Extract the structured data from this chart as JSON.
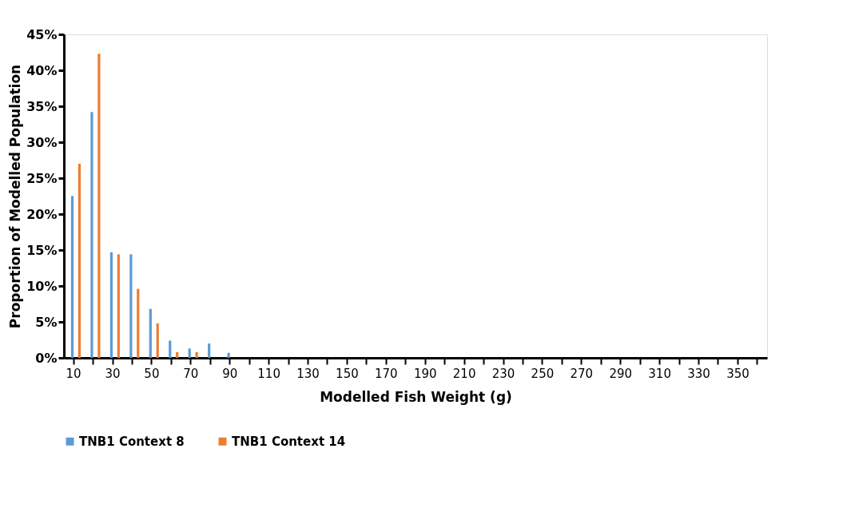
{
  "chart_data": {
    "type": "bar",
    "xlabel": "Modelled Fish Weight (g)",
    "ylabel": "Proportion of Modelled Population",
    "categories": [
      "10",
      null,
      "30",
      null,
      "50",
      null,
      "70",
      null,
      "90",
      null,
      "110",
      null,
      "130",
      null,
      "150",
      null,
      "170",
      null,
      "190",
      null,
      "210",
      null,
      "230",
      null,
      "250",
      null,
      "270",
      null,
      "290",
      null,
      "310",
      null,
      "330",
      null,
      "350",
      null
    ],
    "series": [
      {
        "name": "TNB1 Context 8",
        "color": "#5b9bd5",
        "values": [
          22.5,
          34.2,
          14.7,
          14.4,
          6.8,
          2.4,
          1.3,
          2.0,
          0.7,
          0,
          0,
          0,
          0,
          0,
          0,
          0,
          0,
          0,
          0,
          0,
          0,
          0,
          0,
          0,
          0,
          0,
          0,
          0,
          0,
          0,
          0,
          0,
          0,
          0,
          0,
          0
        ]
      },
      {
        "name": "TNB1 Context 14",
        "color": "#ed7d31",
        "values": [
          27.0,
          42.3,
          14.4,
          9.6,
          4.8,
          0.8,
          0.8,
          0,
          0,
          0,
          0,
          0,
          0,
          0,
          0,
          0,
          0,
          0,
          0,
          0,
          0,
          0,
          0,
          0,
          0,
          0,
          0,
          0,
          0,
          0,
          0,
          0,
          0,
          0,
          0,
          0
        ]
      }
    ],
    "ylim": [
      0,
      45
    ],
    "yticks": [
      {
        "value": 0,
        "label": "0%"
      },
      {
        "value": 5,
        "label": "5%"
      },
      {
        "value": 10,
        "label": "10%"
      },
      {
        "value": 15,
        "label": "15%"
      },
      {
        "value": 20,
        "label": "20%"
      },
      {
        "value": 25,
        "label": "25%"
      },
      {
        "value": 30,
        "label": "30%"
      },
      {
        "value": 35,
        "label": "35%"
      },
      {
        "value": 40,
        "label": "40%"
      },
      {
        "value": 45,
        "label": "45%"
      }
    ],
    "grid": false,
    "legend": "bottom"
  }
}
